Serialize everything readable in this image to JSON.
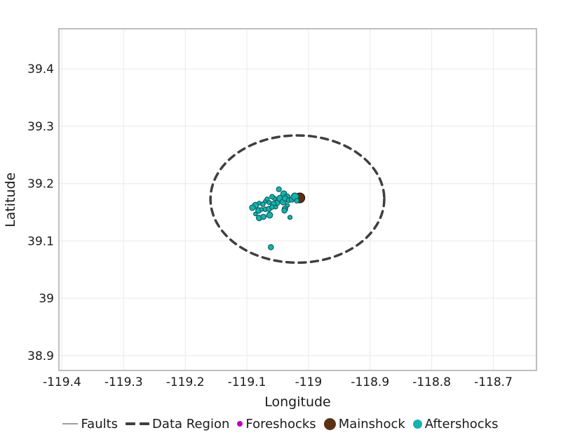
{
  "figure": {
    "background": "#ffffff",
    "plot_border_color": "#a9a9a9",
    "grid_color": "#ececec",
    "text_color": "#1a1a1a"
  },
  "chart_data": {
    "type": "scatter",
    "title": "",
    "xlabel": "Longitude",
    "ylabel": "Latitude",
    "xlim": [
      -119.405,
      -118.63
    ],
    "ylim": [
      38.874,
      39.47
    ],
    "grid": true,
    "legend_position": "bottom",
    "xticks": {
      "values": [
        -119.4,
        -119.3,
        -119.2,
        -119.1,
        -119.0,
        -118.9,
        -118.8,
        -118.7
      ],
      "labels": [
        "-119.4",
        "-119.3",
        "-119.2",
        "-119.1",
        "-119",
        "-118.9",
        "-118.8",
        "-118.7"
      ]
    },
    "yticks": {
      "values": [
        39.4,
        39.3,
        39.2,
        39.1,
        39.0,
        38.9
      ],
      "labels": [
        "39.4",
        "39.3",
        "39.2",
        "39.1",
        "39",
        "38.9"
      ]
    },
    "series": [
      {
        "name": "Faults",
        "type": "line",
        "color": "#9e9e9e",
        "points": []
      },
      {
        "name": "Data Region",
        "type": "ellipse",
        "style": "dashed",
        "color": "#3f3f3f",
        "center": [
          -119.018,
          39.173
        ],
        "rx": 0.141,
        "ry": 0.111
      },
      {
        "name": "Foreshocks",
        "type": "scatter",
        "fill": "#bf00bf",
        "stroke": "#70006f",
        "points": []
      },
      {
        "name": "Mainshock",
        "type": "scatter",
        "fill": "#5b3116",
        "stroke": "#241106",
        "points": [
          [
            -119.014,
            39.175,
            7.0
          ]
        ]
      },
      {
        "name": "Aftershocks",
        "type": "scatter",
        "fill": "#15b2b0",
        "stroke": "#0b615f",
        "points": [
          [
            -119.048,
            39.19,
            3.5
          ],
          [
            -119.046,
            39.174,
            4.7
          ],
          [
            -119.04,
            39.182,
            4.3
          ],
          [
            -119.035,
            39.176,
            4.7
          ],
          [
            -119.041,
            39.168,
            4.3
          ],
          [
            -119.051,
            39.166,
            3.7
          ],
          [
            -119.057,
            39.164,
            4.0
          ],
          [
            -119.064,
            39.167,
            3.0
          ],
          [
            -119.07,
            39.169,
            2.7
          ],
          [
            -119.074,
            39.164,
            3.3
          ],
          [
            -119.08,
            39.166,
            2.7
          ],
          [
            -119.086,
            39.162,
            4.3
          ],
          [
            -119.091,
            39.158,
            4.0
          ],
          [
            -119.081,
            39.153,
            4.0
          ],
          [
            -119.076,
            39.155,
            2.7
          ],
          [
            -119.07,
            39.155,
            3.3
          ],
          [
            -119.064,
            39.156,
            3.7
          ],
          [
            -119.059,
            39.159,
            3.3
          ],
          [
            -119.053,
            39.159,
            2.7
          ],
          [
            -119.086,
            39.147,
            2.7
          ],
          [
            -119.08,
            39.14,
            4.0
          ],
          [
            -119.073,
            39.142,
            3.7
          ],
          [
            -119.063,
            39.145,
            4.3
          ],
          [
            -119.038,
            39.156,
            4.0
          ],
          [
            -119.038,
            39.174,
            4.0
          ],
          [
            -119.032,
            39.171,
            3.3
          ],
          [
            -119.027,
            39.172,
            3.7
          ],
          [
            -119.022,
            39.177,
            5.3
          ],
          [
            -119.019,
            39.17,
            3.3
          ],
          [
            -119.034,
            39.162,
            2.7
          ],
          [
            -119.039,
            39.153,
            3.7
          ],
          [
            -119.03,
            39.141,
            3.0
          ],
          [
            -119.061,
            39.089,
            3.7
          ],
          [
            -119.055,
            39.174,
            3.0
          ],
          [
            -119.059,
            39.177,
            3.3
          ],
          [
            -119.067,
            39.173,
            3.0
          ]
        ]
      }
    ]
  },
  "legend": {
    "items": [
      {
        "label": "Faults",
        "marker": "line",
        "color": "#9e9e9e"
      },
      {
        "label": "Data Region",
        "marker": "dashes",
        "color": "#3f3f3f"
      },
      {
        "label": "Foreshocks",
        "marker": "dot",
        "color": "#bf00bf",
        "radius": 4
      },
      {
        "label": "Mainshock",
        "marker": "dot",
        "color": "#5b3116",
        "radius": 8.5
      },
      {
        "label": "Aftershocks",
        "marker": "dot",
        "color": "#15b2b0",
        "radius": 6.5
      }
    ]
  }
}
